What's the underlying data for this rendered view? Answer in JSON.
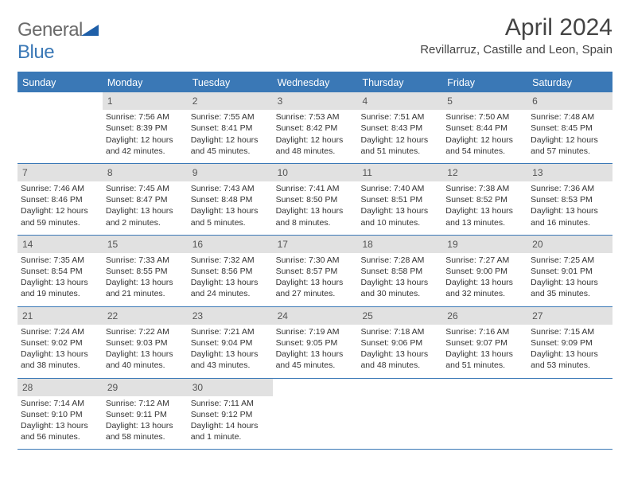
{
  "logo": {
    "text_general": "General",
    "text_blue": "Blue"
  },
  "header": {
    "month_title": "April 2024",
    "location": "Revillarruz, Castille and Leon, Spain"
  },
  "colors": {
    "brand_blue": "#3a78b6",
    "dow_bg": "#3a78b6",
    "dow_text": "#ffffff",
    "daynum_bg": "#e1e1e1",
    "text": "#333333"
  },
  "fonts": {
    "title_size_pt": 22,
    "location_size_pt": 11,
    "dow_size_pt": 9,
    "body_size_pt": 8
  },
  "days_of_week": [
    "Sunday",
    "Monday",
    "Tuesday",
    "Wednesday",
    "Thursday",
    "Friday",
    "Saturday"
  ],
  "weeks": [
    [
      {
        "n": "",
        "sunrise": "",
        "sunset": "",
        "daylight1": "",
        "daylight2": ""
      },
      {
        "n": "1",
        "sunrise": "Sunrise: 7:56 AM",
        "sunset": "Sunset: 8:39 PM",
        "daylight1": "Daylight: 12 hours",
        "daylight2": "and 42 minutes."
      },
      {
        "n": "2",
        "sunrise": "Sunrise: 7:55 AM",
        "sunset": "Sunset: 8:41 PM",
        "daylight1": "Daylight: 12 hours",
        "daylight2": "and 45 minutes."
      },
      {
        "n": "3",
        "sunrise": "Sunrise: 7:53 AM",
        "sunset": "Sunset: 8:42 PM",
        "daylight1": "Daylight: 12 hours",
        "daylight2": "and 48 minutes."
      },
      {
        "n": "4",
        "sunrise": "Sunrise: 7:51 AM",
        "sunset": "Sunset: 8:43 PM",
        "daylight1": "Daylight: 12 hours",
        "daylight2": "and 51 minutes."
      },
      {
        "n": "5",
        "sunrise": "Sunrise: 7:50 AM",
        "sunset": "Sunset: 8:44 PM",
        "daylight1": "Daylight: 12 hours",
        "daylight2": "and 54 minutes."
      },
      {
        "n": "6",
        "sunrise": "Sunrise: 7:48 AM",
        "sunset": "Sunset: 8:45 PM",
        "daylight1": "Daylight: 12 hours",
        "daylight2": "and 57 minutes."
      }
    ],
    [
      {
        "n": "7",
        "sunrise": "Sunrise: 7:46 AM",
        "sunset": "Sunset: 8:46 PM",
        "daylight1": "Daylight: 12 hours",
        "daylight2": "and 59 minutes."
      },
      {
        "n": "8",
        "sunrise": "Sunrise: 7:45 AM",
        "sunset": "Sunset: 8:47 PM",
        "daylight1": "Daylight: 13 hours",
        "daylight2": "and 2 minutes."
      },
      {
        "n": "9",
        "sunrise": "Sunrise: 7:43 AM",
        "sunset": "Sunset: 8:48 PM",
        "daylight1": "Daylight: 13 hours",
        "daylight2": "and 5 minutes."
      },
      {
        "n": "10",
        "sunrise": "Sunrise: 7:41 AM",
        "sunset": "Sunset: 8:50 PM",
        "daylight1": "Daylight: 13 hours",
        "daylight2": "and 8 minutes."
      },
      {
        "n": "11",
        "sunrise": "Sunrise: 7:40 AM",
        "sunset": "Sunset: 8:51 PM",
        "daylight1": "Daylight: 13 hours",
        "daylight2": "and 10 minutes."
      },
      {
        "n": "12",
        "sunrise": "Sunrise: 7:38 AM",
        "sunset": "Sunset: 8:52 PM",
        "daylight1": "Daylight: 13 hours",
        "daylight2": "and 13 minutes."
      },
      {
        "n": "13",
        "sunrise": "Sunrise: 7:36 AM",
        "sunset": "Sunset: 8:53 PM",
        "daylight1": "Daylight: 13 hours",
        "daylight2": "and 16 minutes."
      }
    ],
    [
      {
        "n": "14",
        "sunrise": "Sunrise: 7:35 AM",
        "sunset": "Sunset: 8:54 PM",
        "daylight1": "Daylight: 13 hours",
        "daylight2": "and 19 minutes."
      },
      {
        "n": "15",
        "sunrise": "Sunrise: 7:33 AM",
        "sunset": "Sunset: 8:55 PM",
        "daylight1": "Daylight: 13 hours",
        "daylight2": "and 21 minutes."
      },
      {
        "n": "16",
        "sunrise": "Sunrise: 7:32 AM",
        "sunset": "Sunset: 8:56 PM",
        "daylight1": "Daylight: 13 hours",
        "daylight2": "and 24 minutes."
      },
      {
        "n": "17",
        "sunrise": "Sunrise: 7:30 AM",
        "sunset": "Sunset: 8:57 PM",
        "daylight1": "Daylight: 13 hours",
        "daylight2": "and 27 minutes."
      },
      {
        "n": "18",
        "sunrise": "Sunrise: 7:28 AM",
        "sunset": "Sunset: 8:58 PM",
        "daylight1": "Daylight: 13 hours",
        "daylight2": "and 30 minutes."
      },
      {
        "n": "19",
        "sunrise": "Sunrise: 7:27 AM",
        "sunset": "Sunset: 9:00 PM",
        "daylight1": "Daylight: 13 hours",
        "daylight2": "and 32 minutes."
      },
      {
        "n": "20",
        "sunrise": "Sunrise: 7:25 AM",
        "sunset": "Sunset: 9:01 PM",
        "daylight1": "Daylight: 13 hours",
        "daylight2": "and 35 minutes."
      }
    ],
    [
      {
        "n": "21",
        "sunrise": "Sunrise: 7:24 AM",
        "sunset": "Sunset: 9:02 PM",
        "daylight1": "Daylight: 13 hours",
        "daylight2": "and 38 minutes."
      },
      {
        "n": "22",
        "sunrise": "Sunrise: 7:22 AM",
        "sunset": "Sunset: 9:03 PM",
        "daylight1": "Daylight: 13 hours",
        "daylight2": "and 40 minutes."
      },
      {
        "n": "23",
        "sunrise": "Sunrise: 7:21 AM",
        "sunset": "Sunset: 9:04 PM",
        "daylight1": "Daylight: 13 hours",
        "daylight2": "and 43 minutes."
      },
      {
        "n": "24",
        "sunrise": "Sunrise: 7:19 AM",
        "sunset": "Sunset: 9:05 PM",
        "daylight1": "Daylight: 13 hours",
        "daylight2": "and 45 minutes."
      },
      {
        "n": "25",
        "sunrise": "Sunrise: 7:18 AM",
        "sunset": "Sunset: 9:06 PM",
        "daylight1": "Daylight: 13 hours",
        "daylight2": "and 48 minutes."
      },
      {
        "n": "26",
        "sunrise": "Sunrise: 7:16 AM",
        "sunset": "Sunset: 9:07 PM",
        "daylight1": "Daylight: 13 hours",
        "daylight2": "and 51 minutes."
      },
      {
        "n": "27",
        "sunrise": "Sunrise: 7:15 AM",
        "sunset": "Sunset: 9:09 PM",
        "daylight1": "Daylight: 13 hours",
        "daylight2": "and 53 minutes."
      }
    ],
    [
      {
        "n": "28",
        "sunrise": "Sunrise: 7:14 AM",
        "sunset": "Sunset: 9:10 PM",
        "daylight1": "Daylight: 13 hours",
        "daylight2": "and 56 minutes."
      },
      {
        "n": "29",
        "sunrise": "Sunrise: 7:12 AM",
        "sunset": "Sunset: 9:11 PM",
        "daylight1": "Daylight: 13 hours",
        "daylight2": "and 58 minutes."
      },
      {
        "n": "30",
        "sunrise": "Sunrise: 7:11 AM",
        "sunset": "Sunset: 9:12 PM",
        "daylight1": "Daylight: 14 hours",
        "daylight2": "and 1 minute."
      },
      {
        "n": "",
        "sunrise": "",
        "sunset": "",
        "daylight1": "",
        "daylight2": ""
      },
      {
        "n": "",
        "sunrise": "",
        "sunset": "",
        "daylight1": "",
        "daylight2": ""
      },
      {
        "n": "",
        "sunrise": "",
        "sunset": "",
        "daylight1": "",
        "daylight2": ""
      },
      {
        "n": "",
        "sunrise": "",
        "sunset": "",
        "daylight1": "",
        "daylight2": ""
      }
    ]
  ]
}
